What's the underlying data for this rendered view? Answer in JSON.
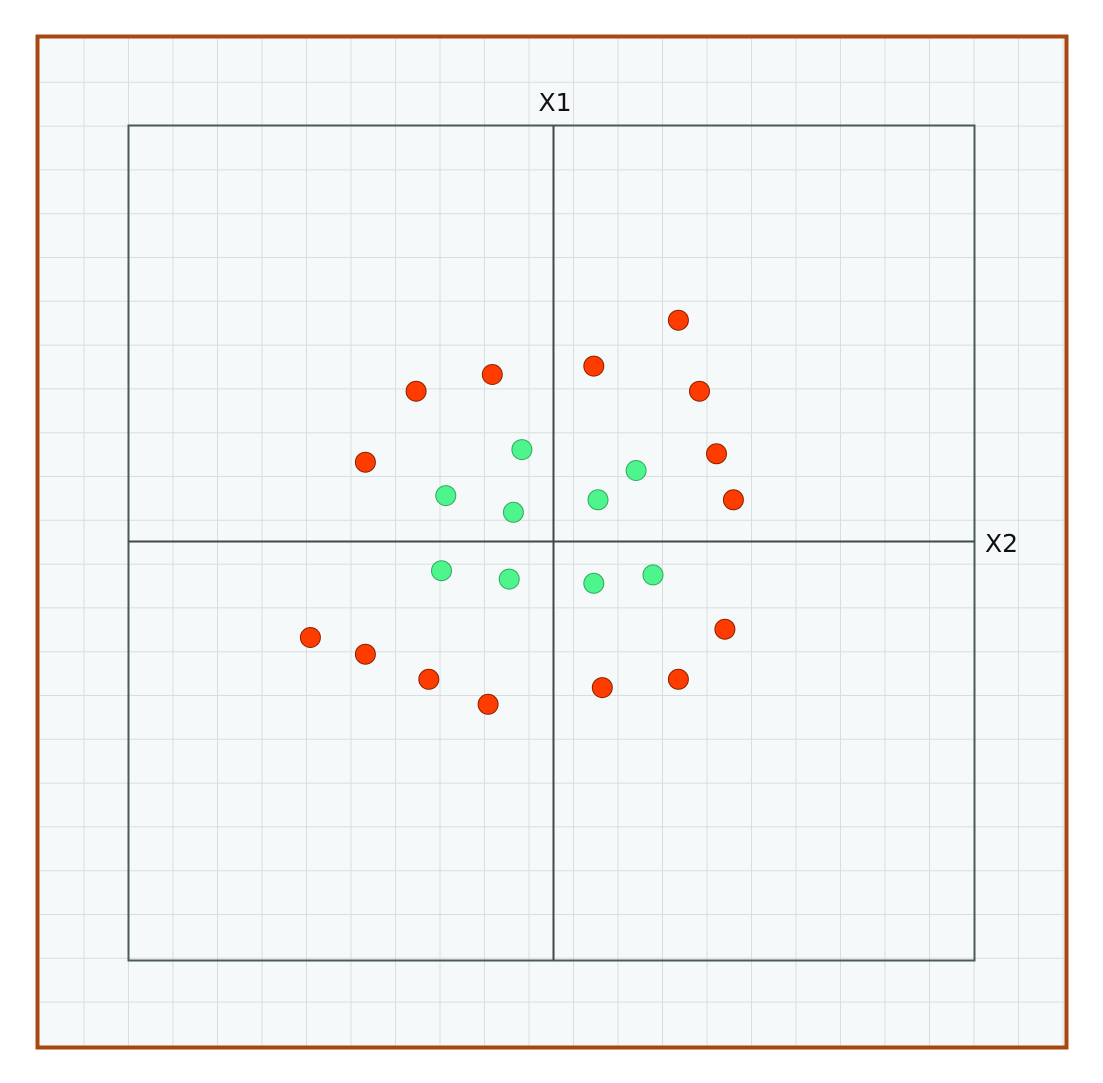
{
  "labels": {
    "x1_axis": "X1",
    "x2_axis": "X2"
  },
  "colors": {
    "frame": "#A8470F",
    "background": "#F6F9F9",
    "grid": "#D7DEDE",
    "plot_border": "#4A5A58",
    "axis": "#3E4A48",
    "outer_class_fill": "#FF3C00",
    "outer_class_stroke": "#8A1E00",
    "inner_class_fill": "#4DF58C",
    "inner_class_stroke": "#2FA862"
  },
  "chart_data": {
    "type": "scatter",
    "xlim": [
      -1,
      1
    ],
    "ylim": [
      -1,
      1
    ],
    "grid": true,
    "series": [
      {
        "class": "outer",
        "points": [
          [
            -0.32,
            0.36
          ],
          [
            -0.14,
            0.4
          ],
          [
            0.1,
            0.42
          ],
          [
            0.3,
            0.53
          ],
          [
            0.35,
            0.36
          ],
          [
            0.39,
            0.21
          ],
          [
            0.43,
            0.1
          ],
          [
            -0.44,
            0.19
          ],
          [
            -0.57,
            -0.23
          ],
          [
            -0.44,
            -0.27
          ],
          [
            -0.29,
            -0.33
          ],
          [
            -0.15,
            -0.39
          ],
          [
            0.12,
            -0.35
          ],
          [
            0.3,
            -0.33
          ],
          [
            0.41,
            -0.21
          ]
        ]
      },
      {
        "class": "inner",
        "points": [
          [
            -0.07,
            0.22
          ],
          [
            -0.25,
            0.11
          ],
          [
            -0.09,
            0.07
          ],
          [
            0.11,
            0.1
          ],
          [
            0.2,
            0.17
          ],
          [
            -0.26,
            -0.07
          ],
          [
            -0.1,
            -0.09
          ],
          [
            0.1,
            -0.1
          ],
          [
            0.24,
            -0.08
          ]
        ]
      }
    ]
  }
}
